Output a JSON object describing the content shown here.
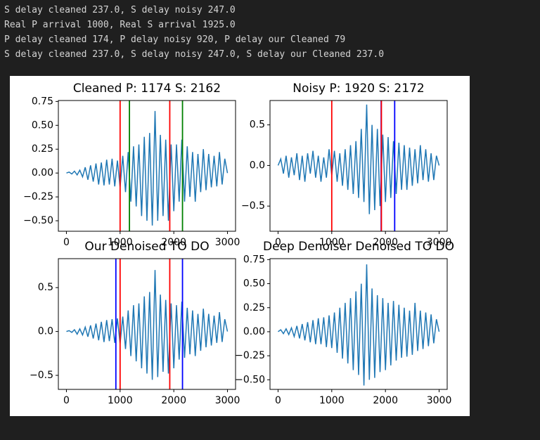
{
  "console_lines": [
    "S delay cleaned 237.0, S delay noisy 247.0",
    "Real P arrival 1000, Real S arrival 1925.0",
    "P delay cleaned 174, P delay noisy 920, P delay our Cleaned 79",
    "S delay cleaned 237.0, S delay noisy 247.0, S delay our Cleaned 237.0"
  ],
  "chart_data": [
    {
      "type": "line",
      "title": "Cleaned P: 1174 S: 2162",
      "color": "#1f77b4",
      "x": [
        0,
        50,
        100,
        150,
        200,
        250,
        300,
        350,
        400,
        450,
        500,
        550,
        600,
        650,
        700,
        750,
        800,
        850,
        900,
        950,
        1000,
        1050,
        1100,
        1150,
        1200,
        1250,
        1300,
        1350,
        1400,
        1450,
        1500,
        1550,
        1600,
        1650,
        1700,
        1750,
        1800,
        1850,
        1900,
        1950,
        2000,
        2050,
        2100,
        2150,
        2200,
        2250,
        2300,
        2350,
        2400,
        2450,
        2500,
        2550,
        2600,
        2650,
        2700,
        2750,
        2800,
        2850,
        2900,
        2950,
        3000
      ],
      "values": [
        0.0,
        0.01,
        -0.01,
        0.02,
        -0.02,
        0.03,
        -0.04,
        0.06,
        -0.07,
        0.08,
        -0.09,
        0.1,
        -0.12,
        0.11,
        -0.13,
        0.14,
        -0.12,
        0.15,
        -0.14,
        0.13,
        -0.15,
        0.18,
        -0.2,
        0.22,
        -0.3,
        0.28,
        -0.35,
        0.3,
        -0.45,
        0.38,
        -0.5,
        0.42,
        -0.55,
        0.65,
        -0.5,
        0.4,
        -0.45,
        0.35,
        -0.5,
        0.3,
        -0.4,
        0.3,
        -0.3,
        0.35,
        -0.3,
        0.28,
        -0.25,
        0.22,
        -0.3,
        0.2,
        -0.2,
        0.25,
        -0.18,
        0.2,
        -0.15,
        0.18,
        -0.14,
        0.22,
        -0.12,
        0.15,
        0.0
      ],
      "vlines": [
        {
          "x": 1000,
          "color": "red"
        },
        {
          "x": 1174,
          "color": "green"
        },
        {
          "x": 1925,
          "color": "red"
        },
        {
          "x": 2162,
          "color": "green"
        }
      ],
      "xlim": [
        -150,
        3150
      ],
      "ylim": [
        -0.61,
        0.76
      ],
      "xticks": [
        0,
        1000,
        2000,
        3000
      ],
      "yticks": [
        {
          "value": -0.5,
          "label": "−0.50"
        },
        {
          "value": -0.25,
          "label": "−0.25"
        },
        {
          "value": 0,
          "label": "0.00"
        },
        {
          "value": 0.25,
          "label": "0.25"
        },
        {
          "value": 0.5,
          "label": "0.50"
        },
        {
          "value": 0.75,
          "label": "0.75"
        }
      ]
    },
    {
      "type": "line",
      "title": "Noisy P: 1920 S: 2172",
      "color": "#1f77b4",
      "x": [
        0,
        50,
        100,
        150,
        200,
        250,
        300,
        350,
        400,
        450,
        500,
        550,
        600,
        650,
        700,
        750,
        800,
        850,
        900,
        950,
        1000,
        1050,
        1100,
        1150,
        1200,
        1250,
        1300,
        1350,
        1400,
        1450,
        1500,
        1550,
        1600,
        1650,
        1700,
        1750,
        1800,
        1850,
        1900,
        1950,
        2000,
        2050,
        2100,
        2150,
        2200,
        2250,
        2300,
        2350,
        2400,
        2450,
        2500,
        2550,
        2600,
        2650,
        2700,
        2750,
        2800,
        2850,
        2900,
        2950,
        3000
      ],
      "values": [
        0.0,
        0.08,
        -0.1,
        0.12,
        -0.15,
        0.1,
        -0.12,
        0.15,
        -0.18,
        0.12,
        -0.2,
        0.15,
        -0.1,
        0.18,
        -0.15,
        0.12,
        -0.2,
        0.1,
        -0.15,
        0.2,
        -0.12,
        0.18,
        -0.2,
        0.15,
        -0.25,
        0.2,
        -0.3,
        0.25,
        -0.35,
        0.3,
        -0.4,
        0.45,
        -0.45,
        0.75,
        -0.6,
        0.5,
        -0.55,
        0.45,
        -0.5,
        0.38,
        -0.45,
        0.35,
        -0.4,
        0.3,
        -0.35,
        0.28,
        -0.3,
        0.25,
        -0.3,
        0.22,
        -0.25,
        0.2,
        -0.22,
        0.25,
        -0.18,
        0.2,
        -0.2,
        0.15,
        -0.18,
        0.12,
        0.0
      ],
      "vlines": [
        {
          "x": 1000,
          "color": "red"
        },
        {
          "x": 1920,
          "color": "blue"
        },
        {
          "x": 1925,
          "color": "red"
        },
        {
          "x": 2172,
          "color": "blue"
        }
      ],
      "xlim": [
        -150,
        3150
      ],
      "ylim": [
        -0.81,
        0.8
      ],
      "xticks": [
        0,
        1000,
        2000,
        3000
      ],
      "yticks": [
        {
          "value": -0.5,
          "label": "−0.5"
        },
        {
          "value": 0,
          "label": "0.0"
        },
        {
          "value": 0.5,
          "label": "0.5"
        }
      ]
    },
    {
      "type": "line",
      "title": "Our Denoised TO DO",
      "color": "#1f77b4",
      "x": [
        0,
        50,
        100,
        150,
        200,
        250,
        300,
        350,
        400,
        450,
        500,
        550,
        600,
        650,
        700,
        750,
        800,
        850,
        900,
        950,
        1000,
        1050,
        1100,
        1150,
        1200,
        1250,
        1300,
        1350,
        1400,
        1450,
        1500,
        1550,
        1600,
        1650,
        1700,
        1750,
        1800,
        1850,
        1900,
        1950,
        2000,
        2050,
        2100,
        2150,
        2200,
        2250,
        2300,
        2350,
        2400,
        2450,
        2500,
        2550,
        2600,
        2650,
        2700,
        2750,
        2800,
        2850,
        2900,
        2950,
        3000
      ],
      "values": [
        0.0,
        0.01,
        -0.01,
        0.02,
        -0.03,
        0.03,
        -0.04,
        0.05,
        -0.06,
        0.07,
        -0.08,
        0.09,
        -0.1,
        0.11,
        -0.12,
        0.13,
        -0.11,
        0.14,
        -0.13,
        0.15,
        -0.14,
        0.17,
        -0.2,
        0.24,
        -0.28,
        0.3,
        -0.34,
        0.32,
        -0.42,
        0.4,
        -0.48,
        0.45,
        -0.55,
        0.7,
        -0.52,
        0.42,
        -0.46,
        0.36,
        -0.48,
        0.32,
        -0.42,
        0.3,
        -0.32,
        0.34,
        -0.3,
        0.27,
        -0.26,
        0.24,
        -0.28,
        0.2,
        -0.22,
        0.26,
        -0.18,
        0.2,
        -0.16,
        0.18,
        -0.13,
        0.22,
        -0.12,
        0.14,
        0.0
      ],
      "vlines": [
        {
          "x": 921,
          "color": "blue"
        },
        {
          "x": 1000,
          "color": "red"
        },
        {
          "x": 1925,
          "color": "red"
        },
        {
          "x": 2162,
          "color": "blue"
        }
      ],
      "xlim": [
        -150,
        3150
      ],
      "ylim": [
        -0.66,
        0.83
      ],
      "xticks": [
        0,
        1000,
        2000,
        3000
      ],
      "yticks": [
        {
          "value": -0.5,
          "label": "−0.5"
        },
        {
          "value": 0,
          "label": "0.0"
        },
        {
          "value": 0.5,
          "label": "0.5"
        }
      ]
    },
    {
      "type": "line",
      "title": "Deep Denoiser Denoised TO DO",
      "color": "#1f77b4",
      "x": [
        0,
        50,
        100,
        150,
        200,
        250,
        300,
        350,
        400,
        450,
        500,
        550,
        600,
        650,
        700,
        750,
        800,
        850,
        900,
        950,
        1000,
        1050,
        1100,
        1150,
        1200,
        1250,
        1300,
        1350,
        1400,
        1450,
        1500,
        1550,
        1600,
        1650,
        1700,
        1750,
        1800,
        1850,
        1900,
        1950,
        2000,
        2050,
        2100,
        2150,
        2200,
        2250,
        2300,
        2350,
        2400,
        2450,
        2500,
        2550,
        2600,
        2650,
        2700,
        2750,
        2800,
        2850,
        2900,
        2950,
        3000
      ],
      "values": [
        0.0,
        0.02,
        -0.02,
        0.03,
        -0.03,
        0.04,
        -0.05,
        0.06,
        -0.07,
        0.08,
        -0.09,
        0.1,
        -0.11,
        0.12,
        -0.13,
        0.14,
        -0.13,
        0.15,
        -0.16,
        0.17,
        -0.17,
        0.2,
        -0.22,
        0.25,
        -0.28,
        0.3,
        -0.33,
        0.35,
        -0.4,
        0.42,
        -0.45,
        0.5,
        -0.56,
        0.7,
        -0.5,
        0.45,
        -0.48,
        0.38,
        -0.42,
        0.35,
        -0.4,
        0.3,
        -0.35,
        0.32,
        -0.3,
        0.28,
        -0.27,
        0.25,
        -0.26,
        0.22,
        -0.24,
        0.3,
        -0.2,
        0.22,
        -0.18,
        0.2,
        -0.15,
        0.18,
        -0.12,
        0.13,
        0.0
      ],
      "vlines": [],
      "xlim": [
        -150,
        3150
      ],
      "ylim": [
        -0.6,
        0.76
      ],
      "xticks": [
        0,
        1000,
        2000,
        3000
      ],
      "yticks": [
        {
          "value": -0.5,
          "label": "−0.50"
        },
        {
          "value": -0.25,
          "label": "−0.25"
        },
        {
          "value": 0,
          "label": "0.00"
        },
        {
          "value": 0.25,
          "label": "0.25"
        },
        {
          "value": 0.5,
          "label": "0.50"
        },
        {
          "value": 0.75,
          "label": "0.75"
        }
      ]
    }
  ]
}
